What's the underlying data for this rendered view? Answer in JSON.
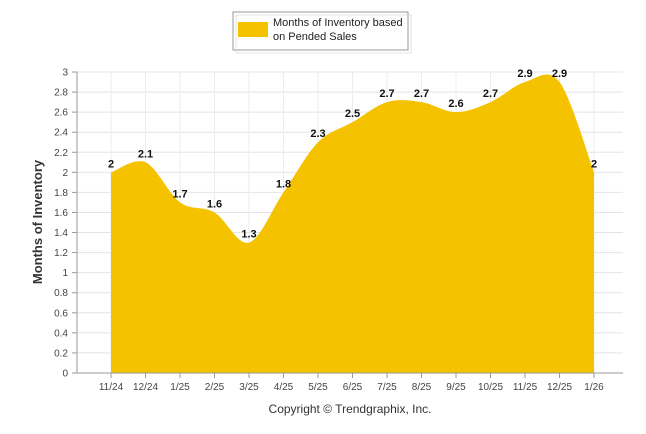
{
  "chart_data": {
    "type": "area",
    "categories": [
      "11/24",
      "12/24",
      "1/25",
      "2/25",
      "3/25",
      "4/25",
      "5/25",
      "6/25",
      "7/25",
      "8/25",
      "9/25",
      "10/25",
      "11/25",
      "12/25",
      "1/26"
    ],
    "series": [
      {
        "name": "Months of Inventory based on Pended Sales",
        "values": [
          2,
          2.1,
          1.7,
          1.6,
          1.3,
          1.8,
          2.3,
          2.5,
          2.7,
          2.7,
          2.6,
          2.7,
          2.9,
          2.9,
          2
        ],
        "color": "#F5C200"
      }
    ],
    "data_labels": [
      "2",
      "2.1",
      "1.7",
      "1.6",
      "1.3",
      "1.8",
      "2.3",
      "2.5",
      "2.7",
      "2.7",
      "2.6",
      "2.7",
      "2.9",
      "2.9",
      "2"
    ],
    "legend": {
      "label_line1": "Months of Inventory based",
      "label_line2": "on Pended Sales",
      "placement": "top-center"
    },
    "ylabel": "Months of Inventory",
    "xlabel": "",
    "ylim": [
      0,
      3
    ],
    "yticks": [
      "0",
      "0.2",
      "0.4",
      "0.6",
      "0.8",
      "1",
      "1.2",
      "1.4",
      "1.6",
      "1.8",
      "2",
      "2.2",
      "2.4",
      "2.6",
      "2.8",
      "3"
    ],
    "grid": true,
    "footer": "Copyright © Trendgraphix, Inc."
  }
}
